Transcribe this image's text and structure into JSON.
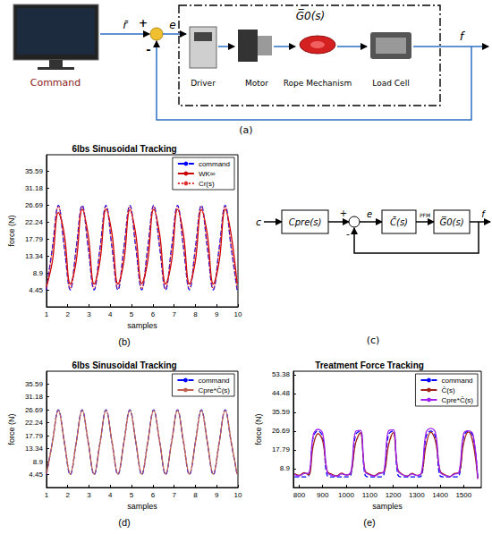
{
  "diagram_a": {
    "label": "(a)",
    "command": "Command",
    "input": "r̄",
    "plus": "+",
    "minus": "-",
    "error": "e",
    "plant": "G̅0(s)",
    "components": [
      "Driver",
      "Motor",
      "Rope Mechanism",
      "Load Cell"
    ],
    "output": "f"
  },
  "diagram_c": {
    "label": "(c)",
    "input": "c",
    "prefilter": "Cpre(s)",
    "plus": "+",
    "minus": "-",
    "error": "e",
    "controller": "C̄(s)",
    "signal": "PFM",
    "plant": "G̅0(s)",
    "output": "f"
  },
  "chart_data": [
    {
      "type": "line",
      "title": "6lbs Sinusoidal Tracking",
      "x_label": "samples",
      "y_label": "force (N)",
      "annotations": [
        "(b)"
      ],
      "x": [
        1.0,
        1.28,
        1.56,
        1.84,
        2.12,
        2.4,
        2.68,
        2.96,
        3.24,
        3.52,
        3.8,
        4.08,
        4.36,
        4.64,
        4.92,
        5.2,
        5.48,
        5.76,
        6.04,
        6.32,
        6.6,
        6.88,
        7.16,
        7.44,
        7.72,
        8.0,
        8.28,
        8.56,
        8.84,
        9.12,
        9.4,
        9.68,
        9.96
      ],
      "series": [
        {
          "name": "command",
          "color": "#0000ff",
          "line_style": "dashed",
          "values": [
            4.45,
            15.57,
            26.69,
            15.57,
            4.45,
            15.57,
            26.69,
            15.57,
            4.45,
            15.57,
            26.69,
            15.57,
            4.45,
            15.57,
            26.69,
            15.57,
            4.45,
            15.57,
            26.69,
            15.57,
            4.45,
            15.57,
            26.69,
            15.57,
            4.45,
            15.57,
            26.69,
            15.57,
            4.45,
            15.57,
            26.69,
            15.57,
            4.45
          ]
        },
        {
          "name": "WK∞",
          "color": "#cc0000",
          "line_style": "solid",
          "values": [
            5.2,
            12.0,
            24.8,
            19.0,
            6.0,
            12.0,
            25.6,
            19.0,
            6.0,
            12.2,
            25.6,
            19.2,
            6.0,
            12.0,
            25.5,
            19.0,
            6.1,
            12.1,
            25.6,
            19.1,
            6.0,
            12.0,
            25.6,
            19.0,
            6.0,
            12.1,
            25.5,
            19.1,
            6.0,
            12.0,
            25.6,
            19.0,
            6.0
          ]
        },
        {
          "name": "Cr(s)",
          "color": "#e03030",
          "line_style": "dotted",
          "values": [
            4.8,
            15.0,
            26.4,
            16.2,
            4.8,
            15.0,
            26.4,
            16.2,
            4.8,
            15.0,
            26.4,
            16.2,
            4.8,
            15.0,
            26.4,
            16.2,
            4.8,
            15.0,
            26.4,
            16.2,
            4.8,
            15.0,
            26.4,
            16.2,
            4.8,
            15.0,
            26.4,
            16.2,
            4.8,
            15.0,
            26.4,
            16.2,
            4.8
          ]
        }
      ],
      "xlim": [
        1,
        10
      ],
      "xticks": [
        1,
        2,
        3,
        4,
        5,
        6,
        7,
        8,
        9,
        10
      ],
      "ylim": [
        0,
        40
      ],
      "yticks": [
        4.45,
        8.9,
        13.34,
        17.79,
        22.24,
        26.69,
        31.18,
        35.59
      ],
      "grid": false,
      "legend": "upper right"
    },
    {
      "type": "line",
      "title": "6lbs Sinusoidal Tracking",
      "x_label": "samples",
      "y_label": "force (N)",
      "annotations": [
        "(d)"
      ],
      "x": [
        1.0,
        1.28,
        1.56,
        1.84,
        2.12,
        2.4,
        2.68,
        2.96,
        3.24,
        3.52,
        3.8,
        4.08,
        4.36,
        4.64,
        4.92,
        5.2,
        5.48,
        5.76,
        6.04,
        6.32,
        6.6,
        6.88,
        7.16,
        7.44,
        7.72,
        8.0,
        8.28,
        8.56,
        8.84,
        9.12,
        9.4,
        9.68,
        9.96
      ],
      "series": [
        {
          "name": "command",
          "color": "#0000ff",
          "line_style": "dashed",
          "values": [
            4.45,
            15.57,
            26.69,
            15.57,
            4.45,
            15.57,
            26.69,
            15.57,
            4.45,
            15.57,
            26.69,
            15.57,
            4.45,
            15.57,
            26.69,
            15.57,
            4.45,
            15.57,
            26.69,
            15.57,
            4.45,
            15.57,
            26.69,
            15.57,
            4.45,
            15.57,
            26.69,
            15.57,
            4.45,
            15.57,
            26.69,
            15.57,
            4.45
          ]
        },
        {
          "name": "Cpre*C̄(s)",
          "color": "#c0604d",
          "line_style": "solid",
          "values": [
            4.6,
            15.4,
            26.6,
            15.8,
            4.6,
            15.4,
            26.6,
            15.8,
            4.6,
            15.4,
            26.6,
            15.8,
            4.6,
            15.4,
            26.6,
            15.8,
            4.6,
            15.4,
            26.6,
            15.8,
            4.6,
            15.4,
            26.6,
            15.8,
            4.6,
            15.4,
            26.6,
            15.8,
            4.6,
            15.4,
            26.6,
            15.8,
            4.6
          ]
        }
      ],
      "xlim": [
        1,
        10
      ],
      "xticks": [
        1,
        2,
        3,
        4,
        5,
        6,
        7,
        8,
        9,
        10
      ],
      "ylim": [
        0,
        40
      ],
      "yticks": [
        4.45,
        8.9,
        13.34,
        17.79,
        22.24,
        26.69,
        31.18,
        35.59
      ],
      "grid": false,
      "legend": "upper right"
    },
    {
      "type": "line",
      "title": "Treatment Force Tracking",
      "x_label": "samples",
      "y_label": "force (N)",
      "annotations": [
        "(e)"
      ],
      "x": [
        780,
        800,
        820,
        840,
        860,
        880,
        900,
        920,
        940,
        960,
        980,
        1000,
        1020,
        1040,
        1060,
        1080,
        1100,
        1120,
        1140,
        1160,
        1180,
        1200,
        1220,
        1240,
        1260,
        1280,
        1300,
        1320,
        1340,
        1360,
        1380,
        1400,
        1420,
        1440,
        1460,
        1480,
        1500,
        1520,
        1540,
        1560
      ],
      "series": [
        {
          "name": "command",
          "color": "#0000ff",
          "line_style": "dashed",
          "values": [
            5,
            5,
            5,
            5.5,
            24,
            26.7,
            24,
            5.5,
            5,
            5,
            5,
            5,
            6,
            25,
            26.7,
            6,
            5,
            5,
            5,
            6,
            25,
            26.7,
            6,
            5,
            5,
            5,
            5,
            5.5,
            24,
            26.7,
            24,
            5.5,
            5,
            5,
            5,
            5.5,
            24,
            26.7,
            24,
            5
          ]
        },
        {
          "name": "C̄(s)",
          "color": "#a0201a",
          "line_style": "solid",
          "values": [
            6.5,
            5.8,
            7,
            6,
            20,
            25.5,
            22,
            7.5,
            6.2,
            5.5,
            6.8,
            5.9,
            7,
            21,
            25.8,
            8,
            6.3,
            5.6,
            6.9,
            7.2,
            20,
            26,
            8.5,
            6.1,
            5.4,
            6.7,
            5.8,
            6.5,
            20,
            26.2,
            22,
            7.8,
            6,
            5.2,
            6.6,
            7,
            21,
            26.3,
            21,
            4.2
          ]
        },
        {
          "name": "Cpre*C̄(s)",
          "color": "#a020f0",
          "line_style": "solid",
          "values": [
            6.2,
            5.5,
            6.6,
            6.8,
            25,
            27.5,
            25.5,
            7,
            5.8,
            5.3,
            6.4,
            6,
            7.5,
            26.5,
            27,
            7.5,
            6,
            5.4,
            6.5,
            7.4,
            26.8,
            27.2,
            8,
            6,
            5.3,
            6.4,
            5.7,
            6.9,
            26,
            28,
            26,
            7.2,
            5.8,
            5.1,
            6.3,
            7.2,
            25.5,
            26.8,
            25,
            4
          ]
        }
      ],
      "xlim": [
        775,
        1575
      ],
      "xticks": [
        800,
        900,
        1000,
        1100,
        1200,
        1300,
        1400,
        1500
      ],
      "ylim": [
        0,
        55
      ],
      "yticks": [
        8.9,
        17.79,
        26.69,
        35.59,
        44.48,
        53.38
      ],
      "grid": false,
      "legend": "upper right"
    }
  ]
}
